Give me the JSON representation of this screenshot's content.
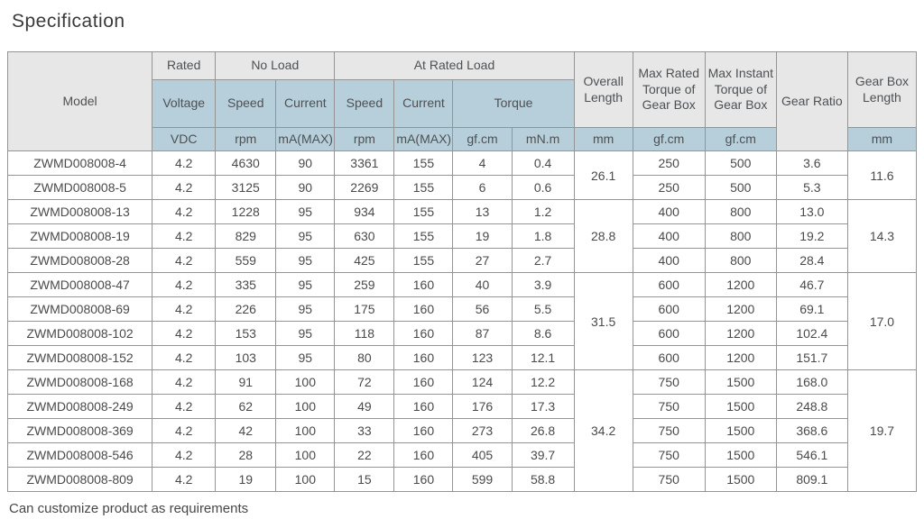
{
  "page": {
    "title": "Specification",
    "footnote": "Can customize product as requirements"
  },
  "colors": {
    "header_gray": "#e7e7e7",
    "header_blue": "#b6cfdb",
    "border": "#949494",
    "text": "#4a4a4a"
  },
  "table": {
    "header": {
      "model": "Model",
      "rated": "Rated",
      "no_load": "No Load",
      "at_rated_load": "At Rated Load",
      "voltage": "Voltage",
      "speed": "Speed",
      "current": "Current",
      "torque": "Torque",
      "overall_length": "Overall Length",
      "max_rated_torque": "Max Rated Torque of Gear Box",
      "max_instant_torque": "Max Instant Torque of Gear Box",
      "gear_ratio": "Gear Ratio",
      "gear_box_length": "Gear Box Length",
      "units": {
        "vdc": "VDC",
        "rpm": "rpm",
        "ma_max": "mA(MAX)",
        "gf_cm": "gf.cm",
        "mn_m": "mN.m",
        "mm": "mm"
      }
    },
    "groups": [
      {
        "overall_length_mm": "26.1",
        "gear_box_length_mm": "11.6",
        "rows": [
          {
            "model": "ZWMD008008-4",
            "voltage_vdc": "4.2",
            "no_load_speed_rpm": "4630",
            "no_load_current_ma": "90",
            "rated_speed_rpm": "3361",
            "rated_current_ma": "155",
            "torque_gf_cm": "4",
            "torque_mn_m": "0.4",
            "max_rated_torque_gf_cm": "250",
            "max_instant_torque_gf_cm": "500",
            "gear_ratio": "3.6"
          },
          {
            "model": "ZWMD008008-5",
            "voltage_vdc": "4.2",
            "no_load_speed_rpm": "3125",
            "no_load_current_ma": "90",
            "rated_speed_rpm": "2269",
            "rated_current_ma": "155",
            "torque_gf_cm": "6",
            "torque_mn_m": "0.6",
            "max_rated_torque_gf_cm": "250",
            "max_instant_torque_gf_cm": "500",
            "gear_ratio": "5.3"
          }
        ]
      },
      {
        "overall_length_mm": "28.8",
        "gear_box_length_mm": "14.3",
        "rows": [
          {
            "model": "ZWMD008008-13",
            "voltage_vdc": "4.2",
            "no_load_speed_rpm": "1228",
            "no_load_current_ma": "95",
            "rated_speed_rpm": "934",
            "rated_current_ma": "155",
            "torque_gf_cm": "13",
            "torque_mn_m": "1.2",
            "max_rated_torque_gf_cm": "400",
            "max_instant_torque_gf_cm": "800",
            "gear_ratio": "13.0"
          },
          {
            "model": "ZWMD008008-19",
            "voltage_vdc": "4.2",
            "no_load_speed_rpm": "829",
            "no_load_current_ma": "95",
            "rated_speed_rpm": "630",
            "rated_current_ma": "155",
            "torque_gf_cm": "19",
            "torque_mn_m": "1.8",
            "max_rated_torque_gf_cm": "400",
            "max_instant_torque_gf_cm": "800",
            "gear_ratio": "19.2"
          },
          {
            "model": "ZWMD008008-28",
            "voltage_vdc": "4.2",
            "no_load_speed_rpm": "559",
            "no_load_current_ma": "95",
            "rated_speed_rpm": "425",
            "rated_current_ma": "155",
            "torque_gf_cm": "27",
            "torque_mn_m": "2.7",
            "max_rated_torque_gf_cm": "400",
            "max_instant_torque_gf_cm": "800",
            "gear_ratio": "28.4"
          }
        ]
      },
      {
        "overall_length_mm": "31.5",
        "gear_box_length_mm": "17.0",
        "rows": [
          {
            "model": "ZWMD008008-47",
            "voltage_vdc": "4.2",
            "no_load_speed_rpm": "335",
            "no_load_current_ma": "95",
            "rated_speed_rpm": "259",
            "rated_current_ma": "160",
            "torque_gf_cm": "40",
            "torque_mn_m": "3.9",
            "max_rated_torque_gf_cm": "600",
            "max_instant_torque_gf_cm": "1200",
            "gear_ratio": "46.7"
          },
          {
            "model": "ZWMD008008-69",
            "voltage_vdc": "4.2",
            "no_load_speed_rpm": "226",
            "no_load_current_ma": "95",
            "rated_speed_rpm": "175",
            "rated_current_ma": "160",
            "torque_gf_cm": "56",
            "torque_mn_m": "5.5",
            "max_rated_torque_gf_cm": "600",
            "max_instant_torque_gf_cm": "1200",
            "gear_ratio": "69.1"
          },
          {
            "model": "ZWMD008008-102",
            "voltage_vdc": "4.2",
            "no_load_speed_rpm": "153",
            "no_load_current_ma": "95",
            "rated_speed_rpm": "118",
            "rated_current_ma": "160",
            "torque_gf_cm": "87",
            "torque_mn_m": "8.6",
            "max_rated_torque_gf_cm": "600",
            "max_instant_torque_gf_cm": "1200",
            "gear_ratio": "102.4"
          },
          {
            "model": "ZWMD008008-152",
            "voltage_vdc": "4.2",
            "no_load_speed_rpm": "103",
            "no_load_current_ma": "95",
            "rated_speed_rpm": "80",
            "rated_current_ma": "160",
            "torque_gf_cm": "123",
            "torque_mn_m": "12.1",
            "max_rated_torque_gf_cm": "600",
            "max_instant_torque_gf_cm": "1200",
            "gear_ratio": "151.7"
          }
        ]
      },
      {
        "overall_length_mm": "34.2",
        "gear_box_length_mm": "19.7",
        "rows": [
          {
            "model": "ZWMD008008-168",
            "voltage_vdc": "4.2",
            "no_load_speed_rpm": "91",
            "no_load_current_ma": "100",
            "rated_speed_rpm": "72",
            "rated_current_ma": "160",
            "torque_gf_cm": "124",
            "torque_mn_m": "12.2",
            "max_rated_torque_gf_cm": "750",
            "max_instant_torque_gf_cm": "1500",
            "gear_ratio": "168.0"
          },
          {
            "model": "ZWMD008008-249",
            "voltage_vdc": "4.2",
            "no_load_speed_rpm": "62",
            "no_load_current_ma": "100",
            "rated_speed_rpm": "49",
            "rated_current_ma": "160",
            "torque_gf_cm": "176",
            "torque_mn_m": "17.3",
            "max_rated_torque_gf_cm": "750",
            "max_instant_torque_gf_cm": "1500",
            "gear_ratio": "248.8"
          },
          {
            "model": "ZWMD008008-369",
            "voltage_vdc": "4.2",
            "no_load_speed_rpm": "42",
            "no_load_current_ma": "100",
            "rated_speed_rpm": "33",
            "rated_current_ma": "160",
            "torque_gf_cm": "273",
            "torque_mn_m": "26.8",
            "max_rated_torque_gf_cm": "750",
            "max_instant_torque_gf_cm": "1500",
            "gear_ratio": "368.6"
          },
          {
            "model": "ZWMD008008-546",
            "voltage_vdc": "4.2",
            "no_load_speed_rpm": "28",
            "no_load_current_ma": "100",
            "rated_speed_rpm": "22",
            "rated_current_ma": "160",
            "torque_gf_cm": "405",
            "torque_mn_m": "39.7",
            "max_rated_torque_gf_cm": "750",
            "max_instant_torque_gf_cm": "1500",
            "gear_ratio": "546.1"
          },
          {
            "model": "ZWMD008008-809",
            "voltage_vdc": "4.2",
            "no_load_speed_rpm": "19",
            "no_load_current_ma": "100",
            "rated_speed_rpm": "15",
            "rated_current_ma": "160",
            "torque_gf_cm": "599",
            "torque_mn_m": "58.8",
            "max_rated_torque_gf_cm": "750",
            "max_instant_torque_gf_cm": "1500",
            "gear_ratio": "809.1"
          }
        ]
      }
    ]
  }
}
